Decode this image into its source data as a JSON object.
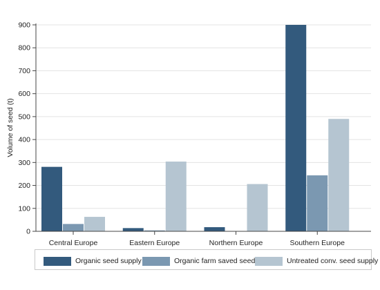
{
  "chart_data": {
    "type": "bar",
    "title": "",
    "xlabel": "",
    "ylabel": "Volume of seed (t)",
    "ylim": [
      0,
      900
    ],
    "yticks": [
      "0",
      "100",
      "200",
      "300",
      "400",
      "500",
      "600",
      "700",
      "800",
      "900"
    ],
    "categories": [
      "Central Europe",
      "Eastern Europe",
      "Northern Europe",
      "Southern Europe"
    ],
    "series": [
      {
        "name": "Organic seed supply",
        "color": "#335a7d",
        "values": [
          281,
          14,
          18,
          900
        ]
      },
      {
        "name": "Organic farm saved seed",
        "color": "#7b98b1",
        "values": [
          32,
          4,
          0,
          244
        ]
      },
      {
        "name": "Untreated conv. seed supply",
        "color": "#b5c5d1",
        "values": [
          63,
          304,
          206,
          490
        ]
      }
    ],
    "grid": "horizontal",
    "legend_position": "bottom"
  }
}
